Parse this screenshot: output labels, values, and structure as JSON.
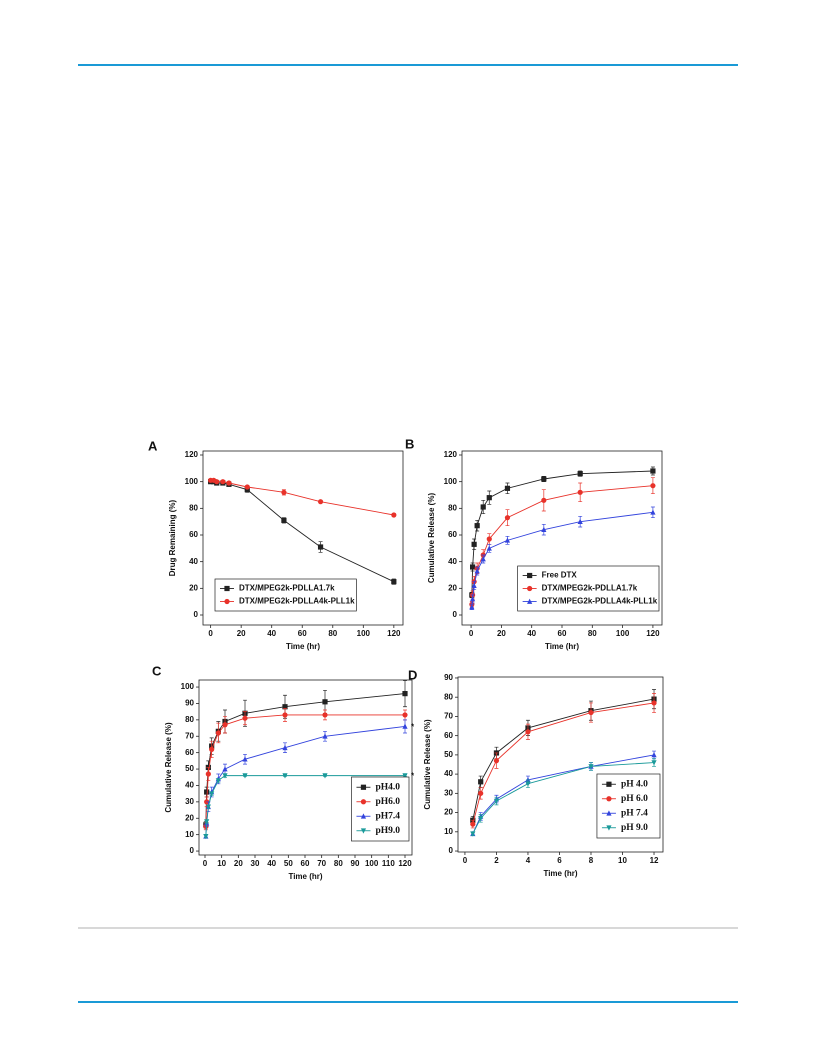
{
  "chart_data": [
    {
      "type": "line",
      "label": "A",
      "xlabel": "Time (hr)",
      "ylabel": "Drug Remaining (%)",
      "xlim": [
        -5,
        126
      ],
      "xticks": [
        0,
        20,
        40,
        60,
        80,
        100,
        120
      ],
      "ylim": [
        -7.5,
        123
      ],
      "yticks": [
        0,
        20,
        40,
        60,
        80,
        100,
        120
      ],
      "legend": "lower left",
      "x": [
        0,
        2,
        4,
        8,
        12,
        24,
        48,
        72,
        120
      ],
      "series": [
        {
          "name": "DTX/MPEG2k-PDLLA1.7k",
          "color": "#222222",
          "marker": "square",
          "values": [
            100,
            100,
            99,
            99,
            98,
            94,
            71,
            51,
            25
          ],
          "errors": [
            1,
            1,
            1,
            1,
            1,
            2,
            2,
            4,
            2
          ]
        },
        {
          "name": "DTX/MPEG2k-PDLLA4k-PLL1k",
          "color": "#e8322a",
          "marker": "circle",
          "values": [
            101,
            101,
            100,
            100,
            99,
            96,
            92,
            85,
            75
          ],
          "errors": [
            1,
            1,
            1,
            1,
            1,
            1,
            2,
            1,
            1
          ]
        }
      ]
    },
    {
      "type": "line",
      "label": "B",
      "xlabel": "Time (hr)",
      "ylabel": "Cumulative Release (%)",
      "xlim": [
        -6,
        126
      ],
      "xticks": [
        0,
        20,
        40,
        60,
        80,
        100,
        120
      ],
      "ylim": [
        -7.5,
        123
      ],
      "yticks": [
        0,
        20,
        40,
        60,
        80,
        100,
        120
      ],
      "legend": "lower right",
      "x": [
        0.5,
        1,
        2,
        4,
        8,
        12,
        24,
        48,
        72,
        120
      ],
      "series": [
        {
          "name": "Free DTX",
          "color": "#222222",
          "marker": "square",
          "values": [
            15,
            36,
            53,
            67,
            81,
            88,
            95,
            102,
            106,
            108
          ],
          "errors": [
            2,
            3,
            4,
            4,
            5,
            5,
            4,
            2,
            2,
            3
          ]
        },
        {
          "name": "DTX/MPEG2k-PDLLA1.7k",
          "color": "#e8322a",
          "marker": "circle",
          "values": [
            8,
            15,
            25,
            35,
            45,
            57,
            73,
            86,
            92,
            97
          ],
          "errors": [
            2,
            3,
            4,
            4,
            4,
            4,
            6,
            8,
            7,
            6
          ]
        },
        {
          "name": "DTX/MPEG2k-PDLLA4k-PLL1k",
          "color": "#3344dd",
          "marker": "triangle-up",
          "values": [
            6,
            12,
            22,
            33,
            42,
            50,
            56,
            64,
            70,
            77
          ],
          "errors": [
            2,
            3,
            3,
            3,
            3,
            3,
            3,
            4,
            4,
            4
          ]
        }
      ]
    },
    {
      "type": "line",
      "label": "C",
      "xlabel": "Time (hr)",
      "ylabel": "Cumulative Release (%)",
      "xlim": [
        -3.6,
        124.2
      ],
      "xticks": [
        0,
        10,
        20,
        30,
        40,
        50,
        60,
        70,
        80,
        90,
        100,
        110,
        120
      ],
      "ylim": [
        -2.4,
        104.3
      ],
      "yticks": [
        0,
        10,
        20,
        30,
        40,
        50,
        60,
        70,
        80,
        90,
        100
      ],
      "legend": "lower right",
      "x": [
        0.5,
        1,
        2,
        4,
        8,
        12,
        24,
        48,
        72,
        120
      ],
      "series": [
        {
          "name": "pH4.0",
          "color": "#222222",
          "marker": "square",
          "values": [
            16,
            36,
            51,
            64,
            73,
            79,
            84,
            88,
            91,
            96
          ],
          "errors": [
            2,
            3,
            4,
            5,
            6,
            7,
            8,
            7,
            7,
            8
          ]
        },
        {
          "name": "pH6.0",
          "color": "#e8322a",
          "marker": "circle",
          "values": [
            15,
            30,
            47,
            62,
            72,
            77,
            81,
            83,
            83,
            83
          ],
          "errors": [
            2,
            3,
            4,
            5,
            6,
            5,
            4,
            4,
            3,
            3
          ]
        },
        {
          "name": "pH7.4",
          "color": "#3344dd",
          "marker": "triangle-up",
          "values": [
            9,
            17,
            27,
            36,
            44,
            50,
            56,
            63,
            70,
            76
          ],
          "errors": [
            1,
            2,
            3,
            3,
            3,
            3,
            3,
            3,
            3,
            4
          ],
          "annotation": "*"
        },
        {
          "name": "pH9.0",
          "color": "#1a9a9a",
          "marker": "triangle-down",
          "values": [
            9,
            18,
            27,
            35,
            43,
            46,
            46,
            46,
            46,
            46
          ],
          "errors": [
            1,
            1,
            1,
            1,
            1,
            1,
            0.5,
            0.5,
            0.5,
            0.5
          ],
          "annotation": "*"
        }
      ]
    },
    {
      "type": "line",
      "label": "D",
      "xlabel": "Time (hr)",
      "ylabel": "Cumulative Release (%)",
      "xlim": [
        -0.44,
        12.57
      ],
      "xticks": [
        0,
        2,
        4,
        6,
        8,
        10,
        12
      ],
      "ylim": [
        -0.5,
        90.5
      ],
      "yticks": [
        0,
        10,
        20,
        30,
        40,
        50,
        60,
        70,
        80,
        90
      ],
      "legend": "lower right",
      "x": [
        0.5,
        1,
        2,
        4,
        8,
        12
      ],
      "series": [
        {
          "name": "pH 4.0",
          "color": "#222222",
          "marker": "square",
          "values": [
            16,
            36,
            51,
            64,
            73,
            79
          ],
          "errors": [
            2,
            3,
            3,
            4,
            5,
            5
          ]
        },
        {
          "name": "pH 6.0",
          "color": "#e8322a",
          "marker": "circle",
          "values": [
            14,
            30,
            47,
            62,
            72,
            77
          ],
          "errors": [
            2,
            3,
            4,
            4,
            5,
            5
          ]
        },
        {
          "name": "pH 7.4",
          "color": "#3344dd",
          "marker": "triangle-up",
          "values": [
            9,
            18,
            27,
            37,
            44,
            50
          ],
          "errors": [
            1,
            2,
            2,
            2,
            2,
            2
          ]
        },
        {
          "name": "pH 9.0",
          "color": "#1a9a9a",
          "marker": "triangle-down",
          "values": [
            9,
            17,
            26,
            35,
            44,
            46
          ],
          "errors": [
            1,
            2,
            2,
            2,
            2,
            2
          ]
        }
      ]
    }
  ]
}
